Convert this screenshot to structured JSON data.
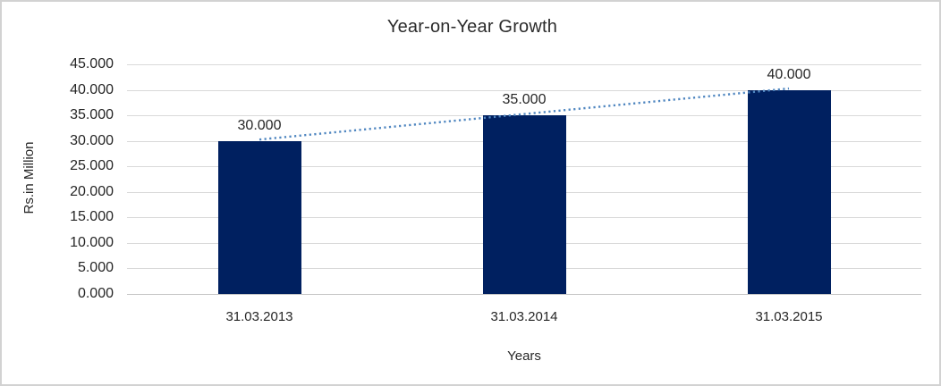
{
  "chart_data": {
    "type": "bar",
    "title": "Year-on-Year Growth",
    "xlabel": "Years",
    "ylabel": "Rs.in Million",
    "categories": [
      "31.03.2013",
      "31.03.2014",
      "31.03.2015"
    ],
    "values": [
      30000,
      35000,
      40000
    ],
    "value_labels": [
      "30.000",
      "35.000",
      "40.000"
    ],
    "ylim": [
      0,
      45000
    ],
    "ytick_step": 5000,
    "ytick_labels": [
      "0.000",
      "5.000",
      "10.000",
      "15.000",
      "20.000",
      "25.000",
      "30.000",
      "35.000",
      "40.000",
      "45.000"
    ],
    "grid": true,
    "legend": "none",
    "trendline": {
      "style": "dotted",
      "spans": "first-to-last-bar",
      "color": "#4f86c0"
    },
    "colors": {
      "bar": "#002060",
      "gridline": "#d9d9d9",
      "axis_line": "#c6c6c6",
      "trendline": "#4f86c0",
      "text": "#262626",
      "background": "#ffffff",
      "border": "#d2d2d2"
    }
  }
}
